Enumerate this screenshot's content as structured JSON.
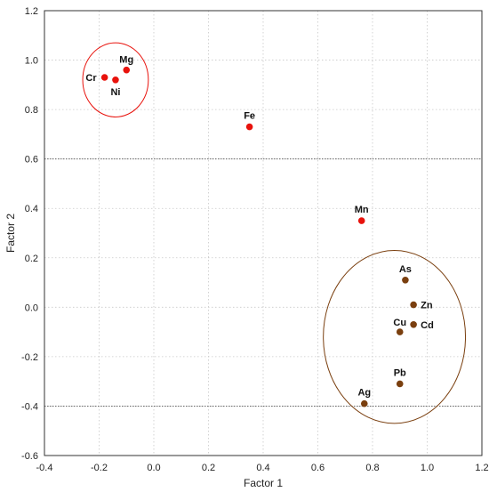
{
  "chart_data": {
    "type": "scatter",
    "title": "",
    "xlabel": "Factor 1",
    "ylabel": "Factor 2",
    "xlim": [
      -0.4,
      1.2
    ],
    "ylim": [
      -0.6,
      1.2
    ],
    "x_ticks": [
      -0.4,
      -0.2,
      0.0,
      0.2,
      0.4,
      0.6,
      0.8,
      1.0,
      1.2
    ],
    "y_ticks": [
      -0.6,
      -0.4,
      -0.2,
      0.0,
      0.2,
      0.4,
      0.6,
      0.8,
      1.0,
      1.2
    ],
    "x_tick_labels": [
      "-0.4",
      "-0.2",
      "0.0",
      "0.2",
      "0.4",
      "0.6",
      "0.8",
      "1.0",
      "1.2"
    ],
    "y_tick_labels": [
      "-0.6",
      "-0.4",
      "-0.2",
      "0.0",
      "0.2",
      "0.4",
      "0.6",
      "0.8",
      "1.0",
      "1.2"
    ],
    "grid": "dotted, vertical and horizontal",
    "reference_lines": [
      {
        "axis": "y",
        "value": 0.6,
        "style": "dotted dark"
      },
      {
        "axis": "y",
        "value": -0.4,
        "style": "dotted dark"
      }
    ],
    "series": [
      {
        "color": "#e8120c",
        "points": [
          {
            "label": "Cr",
            "x": -0.18,
            "y": 0.93
          },
          {
            "label": "Ni",
            "x": -0.14,
            "y": 0.92
          },
          {
            "label": "Mg",
            "x": -0.1,
            "y": 0.96
          },
          {
            "label": "Fe",
            "x": 0.35,
            "y": 0.73
          },
          {
            "label": "Mn",
            "x": 0.76,
            "y": 0.35
          }
        ]
      },
      {
        "color": "#7a3f0f",
        "points": [
          {
            "label": "As",
            "x": 0.92,
            "y": 0.11
          },
          {
            "label": "Zn",
            "x": 0.95,
            "y": 0.01
          },
          {
            "label": "Cu",
            "x": 0.9,
            "y": -0.1
          },
          {
            "label": "Cd",
            "x": 0.95,
            "y": -0.07
          },
          {
            "label": "Pb",
            "x": 0.9,
            "y": -0.31
          },
          {
            "label": "Ag",
            "x": 0.77,
            "y": -0.39
          }
        ]
      }
    ],
    "group_ellipses": [
      {
        "members": [
          "Cr",
          "Ni",
          "Mg"
        ],
        "color": "#e8120c",
        "center": [
          -0.14,
          0.92
        ],
        "radii": [
          0.12,
          0.15
        ]
      },
      {
        "members": [
          "As",
          "Zn",
          "Cu",
          "Cd",
          "Pb",
          "Ag"
        ],
        "color": "#7a3f0f",
        "center": [
          0.88,
          -0.12
        ],
        "radii": [
          0.26,
          0.35
        ]
      }
    ]
  }
}
